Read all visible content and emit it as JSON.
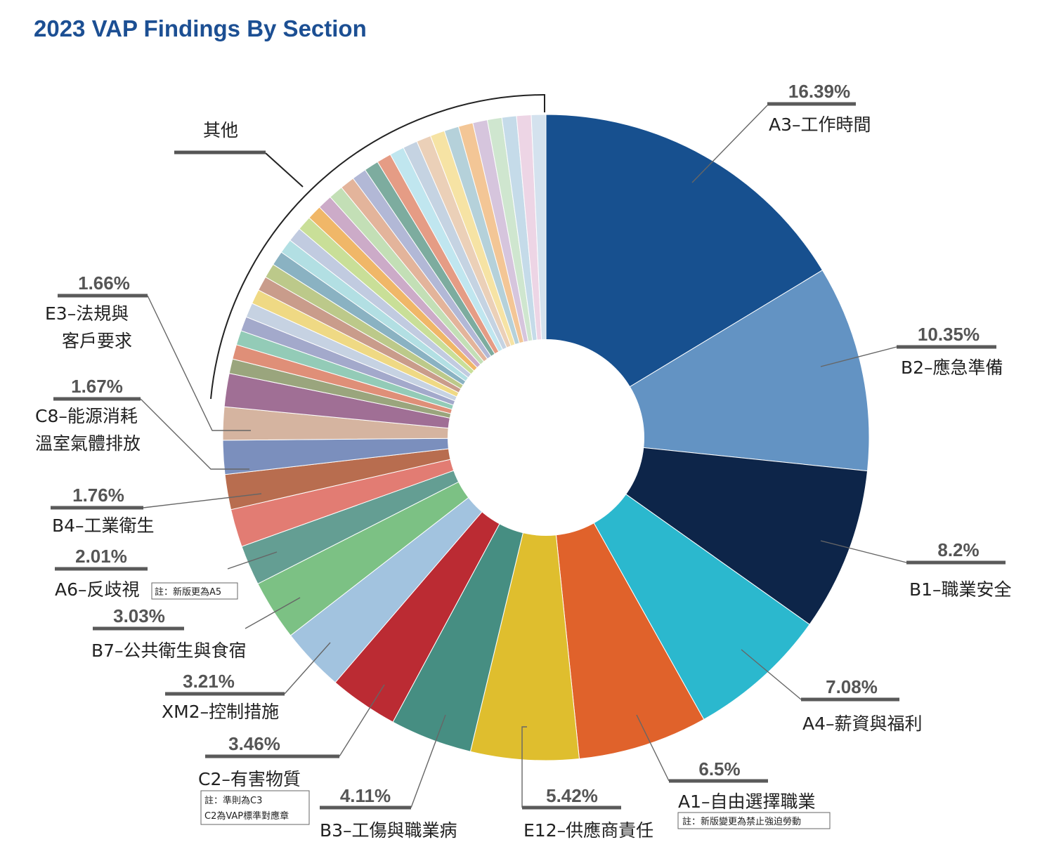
{
  "title": "2023 VAP Findings By Section",
  "chart_data": {
    "type": "pie",
    "donut": true,
    "title": "2023 VAP Findings By Section",
    "slices": [
      {
        "label": "A3–工作時間",
        "pct": "16.39%",
        "value": 16.39,
        "color": "#17508f"
      },
      {
        "label": "B2–應急準備",
        "pct": "10.35%",
        "value": 10.35,
        "color": "#6393c3"
      },
      {
        "label": "B1–職業安全",
        "pct": "8.2%",
        "value": 8.2,
        "color": "#0d2549"
      },
      {
        "label": "A4–薪資與福利",
        "pct": "7.08%",
        "value": 7.08,
        "color": "#2bb8ce"
      },
      {
        "label": "A1–自由選擇職業",
        "pct": "6.5%",
        "value": 6.5,
        "color": "#e0622b",
        "note": "註：新版變更為禁止強迫勞動"
      },
      {
        "label": "E12–供應商責任",
        "pct": "5.42%",
        "value": 5.42,
        "color": "#dfbe2e"
      },
      {
        "label": "B3–工傷與職業病",
        "pct": "4.11%",
        "value": 4.11,
        "color": "#468e82"
      },
      {
        "label": "C2–有害物質",
        "pct": "3.46%",
        "value": 3.46,
        "color": "#bb2b33",
        "note": [
          "註：準則為C3",
          "C2為VAP標準對應章"
        ]
      },
      {
        "label": "XM2–控制措施",
        "pct": "3.21%",
        "value": 3.21,
        "color": "#a2c3df"
      },
      {
        "label": "B7–公共衛生與食宿",
        "pct": "3.03%",
        "value": 3.03,
        "color": "#7cc184"
      },
      {
        "label": "A6–反歧視",
        "pct": "2.01%",
        "value": 2.01,
        "color": "#649e93",
        "note": "註：新版更為A5"
      },
      {
        "label": "",
        "pct": "",
        "value": 1.9,
        "color": "#e27c73"
      },
      {
        "label": "B4–工業衛生",
        "pct": "1.76%",
        "value": 1.76,
        "color": "#b86d4f"
      },
      {
        "label": "",
        "pct": "",
        "value": 1.7,
        "color": "#7b8fbd"
      },
      {
        "label": "E3–法規與客戶要求",
        "pct": "1.66%",
        "value": 1.66,
        "color": "#d5b4a0"
      },
      {
        "label": "C8–能源消耗溫室氣體排放",
        "pct": "1.67%",
        "value": 1.67,
        "color": "#a06f95"
      }
    ],
    "other_label": "其他",
    "other_value": 21.89,
    "other_colors": [
      "#9aa57d",
      "#df8f78",
      "#93cbb7",
      "#a3a9cb",
      "#c6d2e2",
      "#efd984",
      "#c99c8b",
      "#bcc98a",
      "#8ab2c2",
      "#b2dfe3",
      "#c1cbe0",
      "#c9df98",
      "#f0b768",
      "#ccabc8",
      "#c3dfb6",
      "#e3b49b",
      "#b2b8d6",
      "#7dac9f",
      "#e59c85",
      "#c0e6ef",
      "#c5d3e2",
      "#ebd0b8",
      "#f6e3a4",
      "#b5d1da",
      "#f3c696",
      "#d6c5dd",
      "#cfe6cf",
      "#c5dbe9",
      "#edd5e5",
      "#d4e2ee"
    ]
  },
  "labels": {
    "a3_pct": "16.39%",
    "a3": "A3–工作時間",
    "b2_pct": "10.35%",
    "b2": "B2–應急準備",
    "b1_pct": "8.2%",
    "b1": "B1–職業安全",
    "a4_pct": "7.08%",
    "a4": "A4–薪資與福利",
    "a1_pct": "6.5%",
    "a1": "A1–自由選擇職業",
    "a1_note": "註：新版變更為禁止強迫勞動",
    "e12_pct": "5.42%",
    "e12": "E12–供應商責任",
    "b3_pct": "4.11%",
    "b3": "B3–工傷與職業病",
    "c2_pct": "3.46%",
    "c2": "C2–有害物質",
    "c2_note1": "註：準則為C3",
    "c2_note2": "C2為VAP標準對應章",
    "xm2_pct": "3.21%",
    "xm2": "XM2–控制措施",
    "b7_pct": "3.03%",
    "b7": "B7–公共衛生與食宿",
    "a6_pct": "2.01%",
    "a6": "A6–反歧視",
    "a6_note": "註：新版更為A5",
    "b4_pct": "1.76%",
    "b4": "B4–工業衛生",
    "c8_pct": "1.67%",
    "c8_l1": "C8–能源消耗",
    "c8_l2": "溫室氣體排放",
    "e3_pct": "1.66%",
    "e3_l1": "E3–法規與",
    "e3_l2": "客戶要求",
    "other": "其他"
  }
}
